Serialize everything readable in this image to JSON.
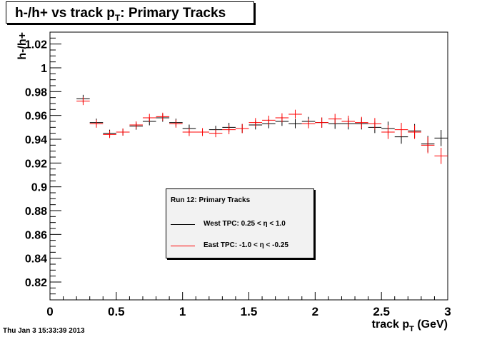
{
  "chart_data": {
    "type": "scatter",
    "title": "h-/h+ vs track p",
    "title_subscript": "T",
    "title_suffix": ": Primary Tracks",
    "xlabel": "track p",
    "xlabel_subscript": "T",
    "xlabel_suffix": " (GeV)",
    "ylabel": "h-/h+",
    "xlim": [
      0,
      3
    ],
    "ylim": [
      0.805,
      1.03
    ],
    "xticks": [
      0,
      0.5,
      1,
      1.5,
      2,
      2.5,
      3
    ],
    "xtick_labels": [
      "0",
      "0.5",
      "1",
      "1.5",
      "2",
      "2.5",
      "3"
    ],
    "yticks": [
      0.82,
      0.84,
      0.86,
      0.88,
      0.9,
      0.92,
      0.94,
      0.96,
      0.98,
      1,
      1.02
    ],
    "ytick_labels": [
      "0.82",
      "0.84",
      "0.86",
      "0.88",
      "0.9",
      "0.92",
      "0.94",
      "0.96",
      "0.98",
      "1",
      "1.02"
    ],
    "bin_width": 0.1,
    "x": [
      0.25,
      0.35,
      0.45,
      0.55,
      0.65,
      0.75,
      0.85,
      0.95,
      1.05,
      1.15,
      1.25,
      1.35,
      1.45,
      1.55,
      1.65,
      1.75,
      1.85,
      1.95,
      2.05,
      2.15,
      2.25,
      2.35,
      2.45,
      2.55,
      2.65,
      2.75,
      2.85,
      2.95
    ],
    "series": [
      {
        "name": "West TPC: 0.25 < η < 1.0",
        "color": "#000000",
        "values": [
          0.974,
          0.954,
          0.945,
          0.946,
          0.951,
          0.955,
          0.958,
          0.954,
          0.949,
          0.946,
          0.948,
          0.95,
          0.949,
          0.952,
          0.953,
          0.955,
          0.953,
          0.955,
          0.954,
          0.953,
          0.953,
          0.953,
          0.95,
          0.949,
          0.942,
          0.947,
          0.936,
          0.941
        ],
        "errors": [
          0.0015,
          0.0015,
          0.0012,
          0.0012,
          0.0012,
          0.0015,
          0.0015,
          0.0015,
          0.0015,
          0.0015,
          0.0015,
          0.002,
          0.002,
          0.002,
          0.002,
          0.002,
          0.002,
          0.002,
          0.0025,
          0.0025,
          0.003,
          0.003,
          0.003,
          0.004,
          0.004,
          0.004,
          0.005,
          0.005
        ]
      },
      {
        "name": "East TPC: -1.0 < η < -0.25",
        "color": "#ff0000",
        "values": [
          0.972,
          0.953,
          0.944,
          0.946,
          0.952,
          0.958,
          0.959,
          0.953,
          0.946,
          0.946,
          0.945,
          0.948,
          0.949,
          0.954,
          0.956,
          0.958,
          0.961,
          0.953,
          0.954,
          0.957,
          0.955,
          0.954,
          0.953,
          0.946,
          0.948,
          0.946,
          0.935,
          0.926
        ],
        "errors": [
          0.0015,
          0.0015,
          0.0012,
          0.0012,
          0.0012,
          0.0015,
          0.0015,
          0.0015,
          0.0015,
          0.0015,
          0.0015,
          0.002,
          0.002,
          0.002,
          0.002,
          0.002,
          0.002,
          0.002,
          0.0025,
          0.0025,
          0.003,
          0.003,
          0.003,
          0.004,
          0.004,
          0.004,
          0.005,
          0.005
        ]
      }
    ],
    "legend": {
      "header": "Run 12: Primary Tracks",
      "placement": "center",
      "entries": [
        "West TPC: 0.25 < η < 1.0",
        "East TPC: -1.0 < η < -0.25"
      ]
    },
    "grid": false
  },
  "footer": "Thu Jan  3 15:33:39 2013"
}
